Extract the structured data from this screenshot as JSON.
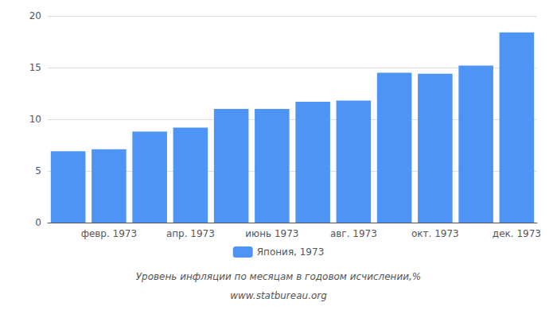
{
  "chart_data": {
    "type": "bar",
    "categories": [
      null,
      "февр. 1973",
      null,
      "апр. 1973",
      null,
      "июнь 1973",
      null,
      "авг. 1973",
      null,
      "окт. 1973",
      null,
      "дек. 1973"
    ],
    "series": [
      {
        "name": "Япония, 1973",
        "color": "#4d94f5",
        "values": [
          6.9,
          7.1,
          8.8,
          9.2,
          11.0,
          11.0,
          11.7,
          11.8,
          14.5,
          14.4,
          15.2,
          18.4
        ]
      }
    ],
    "ylim": [
      0,
      20
    ],
    "yticks": [
      0,
      5,
      10,
      15,
      20
    ],
    "grid": true,
    "legend": "bottom",
    "annotations": [
      "Уровень инфляции по месяцам в годовом исчислении,%",
      "www.statbureau.org"
    ]
  }
}
